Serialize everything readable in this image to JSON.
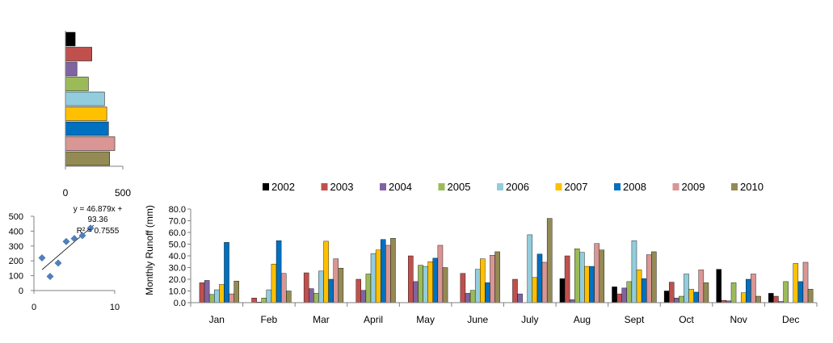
{
  "colors": {
    "2002": "#000000",
    "2003": "#C0504D",
    "2004": "#8064A2",
    "2005": "#9BBB59",
    "2006": "#93CDDD",
    "2007": "#FFC000",
    "2008": "#0070C0",
    "2009": "#D99694",
    "2010": "#948A54"
  },
  "chart_data": [
    {
      "type": "bar",
      "orientation": "horizontal",
      "categories": [
        "2002",
        "2003",
        "2004",
        "2005",
        "2006",
        "2007",
        "2008",
        "2009",
        "2010"
      ],
      "values": [
        85,
        230,
        100,
        200,
        340,
        360,
        375,
        430,
        385
      ],
      "xlim": [
        0,
        500
      ],
      "xticks": [
        "0",
        "500"
      ],
      "grid": false
    },
    {
      "type": "scatter",
      "x": [
        1,
        2,
        3,
        4,
        5,
        6,
        7
      ],
      "y": [
        220,
        95,
        185,
        330,
        350,
        370,
        420
      ],
      "xlim": [
        0,
        10
      ],
      "ylim": [
        0,
        500
      ],
      "xticks": [
        "0",
        "10"
      ],
      "yticks": [
        "0",
        "100",
        "200",
        "300",
        "400",
        "500"
      ],
      "trendline": {
        "slope": 46.879,
        "intercept": 93.36
      },
      "equation_lines": [
        "y = 46.879x +",
        "93.36",
        "R² = 0.7555"
      ],
      "grid": false
    },
    {
      "type": "bar",
      "categories": [
        "Jan",
        "Feb",
        "Mar",
        "April",
        "May",
        "June",
        "July",
        "Aug",
        "Sept",
        "Oct",
        "Nov",
        "Dec"
      ],
      "series": [
        {
          "name": "2002",
          "values": [
            0,
            0,
            0,
            0,
            0,
            0,
            0,
            20.5,
            13.5,
            10,
            28.5,
            8
          ]
        },
        {
          "name": "2003",
          "values": [
            17,
            4,
            25.5,
            20,
            40,
            25,
            20,
            40,
            7.5,
            17.5,
            2,
            5.5
          ]
        },
        {
          "name": "2004",
          "values": [
            19,
            0.5,
            12,
            10.5,
            18,
            8,
            7.5,
            2.5,
            12.5,
            4,
            1.5,
            1
          ]
        },
        {
          "name": "2005",
          "values": [
            7,
            4,
            8,
            24.5,
            32,
            10.5,
            0,
            46,
            18,
            5.5,
            17,
            18
          ]
        },
        {
          "name": "2006",
          "values": [
            11,
            11,
            27,
            42,
            31,
            28.5,
            58,
            43,
            53,
            24.5,
            0,
            0
          ]
        },
        {
          "name": "2007",
          "values": [
            15.5,
            33,
            52.5,
            45,
            35,
            37.5,
            21.5,
            31,
            28,
            11.5,
            8.5,
            33.5
          ]
        },
        {
          "name": "2008",
          "values": [
            51.5,
            53,
            20,
            54,
            38,
            17,
            41.5,
            31,
            20.5,
            9,
            20,
            18
          ]
        },
        {
          "name": "2009",
          "values": [
            7.5,
            25,
            37.5,
            49,
            49,
            40.5,
            34.5,
            50.5,
            41,
            28,
            24.5,
            34.5
          ]
        },
        {
          "name": "2010",
          "values": [
            18.5,
            10,
            29.5,
            55,
            30,
            43.5,
            72,
            45,
            43.5,
            17,
            5.5,
            11.5
          ]
        }
      ],
      "ylabel": "Monthly  Runoff (mm)",
      "ylim": [
        0,
        80
      ],
      "yticks": [
        "0.0",
        "10.0",
        "20.0",
        "30.0",
        "40.0",
        "50.0",
        "60.0",
        "70.0",
        "80.0"
      ],
      "legend_position": "top",
      "grid": false
    }
  ]
}
